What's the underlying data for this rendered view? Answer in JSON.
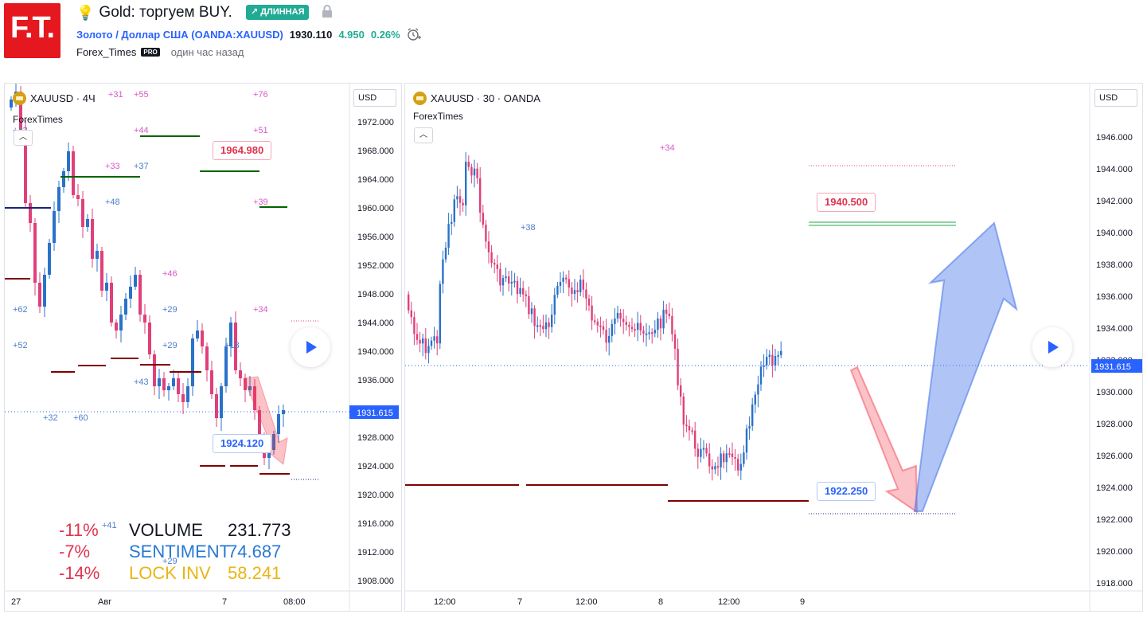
{
  "header": {
    "logo_text": "F.T.",
    "title": "Gold: торгуем BUY.",
    "badge": "↗ ДЛИННАЯ",
    "symbol_link": "Золото / Доллар США",
    "exchange": "(OANDA:XAUUSD)",
    "price": "1930.110",
    "change": "4.950",
    "change_pct": "0.26%",
    "author": "Forex_Times",
    "pro": "PRO",
    "time_ago": "один час назад"
  },
  "colors": {
    "up": "#2a72c9",
    "down": "#e0407a",
    "accent": "#2962ff",
    "brand": "#e5171f"
  },
  "left_chart": {
    "symbol": "XAUUSD · 4Ч",
    "author": "ForexTimes",
    "currency": "USD",
    "current_price": "1931.615",
    "callout_high": "1964.980",
    "callout_low": "1924.120",
    "y_ticks": [
      "1972.000",
      "1968.000",
      "1964.000",
      "1960.000",
      "1956.000",
      "1952.000",
      "1948.000",
      "1944.000",
      "1940.000",
      "1936.000",
      "1928.000",
      "1924.000",
      "1920.000",
      "1916.000",
      "1912.000",
      "1908.000"
    ],
    "x_ticks": [
      "27",
      "Авг",
      "7",
      "08:00"
    ],
    "annotations_pink": [
      "+31",
      "+55",
      "+76",
      "+44",
      "+51",
      "+33",
      "+39",
      "+46",
      "+34"
    ],
    "annotations_blue": [
      "+42",
      "+37",
      "+48",
      "+62",
      "+29",
      "+52",
      "+29",
      "+18",
      "+43",
      "+32",
      "+60",
      "+41",
      "+29"
    ]
  },
  "right_chart": {
    "symbol": "XAUUSD · 30 · OANDA",
    "author": "ForexTimes",
    "currency": "USD",
    "current_price": "1931.615",
    "callout_high": "1940.500",
    "callout_low": "1922.250",
    "partial_tick": "1932.000",
    "y_ticks": [
      "1946.000",
      "1944.000",
      "1942.000",
      "1940.000",
      "1938.000",
      "1936.000",
      "1934.000",
      "1930.000",
      "1928.000",
      "1926.000",
      "1924.000",
      "1922.000",
      "1920.000",
      "1918.000"
    ],
    "x_ticks": [
      "12:00",
      "7",
      "12:00",
      "8",
      "12:00",
      "9"
    ],
    "annotations_pink": [
      "+34"
    ],
    "annotations_blue": [
      "+38"
    ]
  },
  "stats": [
    {
      "pct": "-11%",
      "label": "VOLUME",
      "value": "231.773"
    },
    {
      "pct": "-7%",
      "label": "SENTIMENT",
      "value": "74.687"
    },
    {
      "pct": "-14%",
      "label": "LOCK INV",
      "value": "58.241"
    }
  ]
}
